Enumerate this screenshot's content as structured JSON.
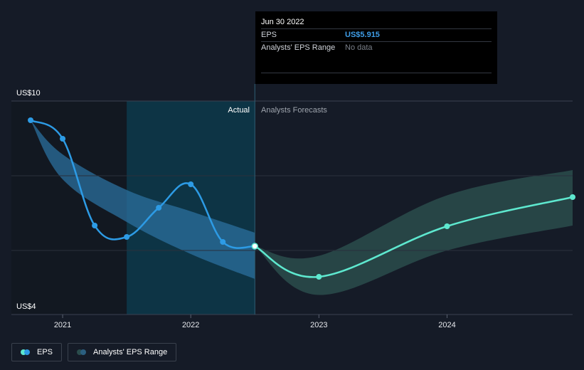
{
  "tooltip": {
    "date": "Jun 30 2022",
    "eps_label": "EPS",
    "eps_value": "US$5.915",
    "range_label": "Analysts' EPS Range",
    "range_value": "No data"
  },
  "sections": {
    "actual_label": "Actual",
    "forecast_label": "Analysts Forecasts"
  },
  "legend": {
    "eps_label": "EPS",
    "range_label": "Analysts' EPS Range"
  },
  "colors": {
    "background": "#151b27",
    "eps_actual": "#2d9be5",
    "eps_forecast": "#5ee8cf",
    "range_actual": "#2b6f9e",
    "range_forecast": "#2a4c4c",
    "highlight": "#0d3445"
  },
  "chart_data": {
    "type": "line",
    "y_axis": {
      "min": 4,
      "max": 10,
      "ticks": [
        "US$4",
        "US$10"
      ]
    },
    "x_axis": {
      "min": 2020.6,
      "max": 2024.98,
      "ticks": [
        {
          "value": 2021.0,
          "label": "2021"
        },
        {
          "value": 2022.0,
          "label": "2022"
        },
        {
          "value": 2023.0,
          "label": "2023"
        },
        {
          "value": 2024.0,
          "label": "2024"
        }
      ]
    },
    "gridlines": [
      7.9,
      5.8
    ],
    "highlight_range": [
      2021.5,
      2022.5
    ],
    "divider_x": 2022.5,
    "series": [
      {
        "name": "EPS",
        "role": "actual",
        "points": [
          {
            "x": 2020.75,
            "y": 9.46
          },
          {
            "x": 2021.0,
            "y": 8.94
          },
          {
            "x": 2021.25,
            "y": 6.5
          },
          {
            "x": 2021.5,
            "y": 6.18
          },
          {
            "x": 2021.75,
            "y": 7.0
          },
          {
            "x": 2022.0,
            "y": 7.66
          },
          {
            "x": 2022.25,
            "y": 6.04
          },
          {
            "x": 2022.5,
            "y": 5.92
          }
        ]
      },
      {
        "name": "EPS",
        "role": "forecast",
        "points": [
          {
            "x": 2022.5,
            "y": 5.92
          },
          {
            "x": 2023.0,
            "y": 5.06
          },
          {
            "x": 2024.0,
            "y": 6.48
          },
          {
            "x": 2024.98,
            "y": 7.3
          }
        ]
      }
    ],
    "range_bands": [
      {
        "role": "actual",
        "upper": [
          {
            "x": 2020.75,
            "y": 9.46
          },
          {
            "x": 2021.0,
            "y": 8.5
          },
          {
            "x": 2021.5,
            "y": 7.5
          },
          {
            "x": 2022.0,
            "y": 6.9
          },
          {
            "x": 2022.5,
            "y": 6.3
          }
        ],
        "lower": [
          {
            "x": 2020.75,
            "y": 9.46
          },
          {
            "x": 2021.0,
            "y": 7.8
          },
          {
            "x": 2021.5,
            "y": 6.6
          },
          {
            "x": 2022.0,
            "y": 5.7
          },
          {
            "x": 2022.5,
            "y": 5.0
          }
        ]
      },
      {
        "role": "forecast",
        "upper": [
          {
            "x": 2022.5,
            "y": 5.92
          },
          {
            "x": 2023.0,
            "y": 5.65
          },
          {
            "x": 2024.0,
            "y": 7.35
          },
          {
            "x": 2024.98,
            "y": 8.06
          }
        ],
        "lower": [
          {
            "x": 2022.5,
            "y": 5.92
          },
          {
            "x": 2023.0,
            "y": 4.55
          },
          {
            "x": 2024.0,
            "y": 5.8
          },
          {
            "x": 2024.98,
            "y": 6.5
          }
        ]
      }
    ]
  }
}
